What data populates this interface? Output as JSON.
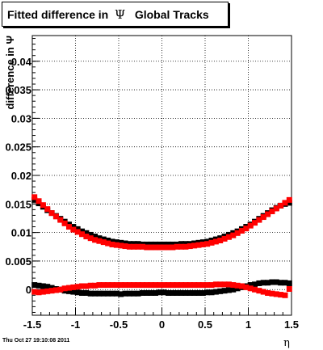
{
  "title": {
    "prefix": "Fitted difference in  ",
    "psi": "Ψ",
    "suffix": "   Global Tracks"
  },
  "footer_text": "Thu Oct 27 19:10:08 2011",
  "chart_data": {
    "type": "scatter",
    "title": "Fitted difference in Ψ Global Tracks",
    "xlabel": "η",
    "ylabel": "difference in Ψ",
    "xlim": [
      -1.5,
      1.5
    ],
    "ylim": [
      -0.0045,
      0.0445
    ],
    "grid": true,
    "x_ticks": [
      -1.5,
      -1,
      -0.5,
      0,
      0.5,
      1,
      1.5
    ],
    "x_tick_labels": [
      "-1.5",
      "-1",
      "-0.5",
      "0",
      "0.5",
      "1",
      "1.5"
    ],
    "y_ticks": [
      0,
      0.005,
      0.01,
      0.015,
      0.02,
      0.025,
      0.03,
      0.035,
      0.04
    ],
    "y_tick_labels": [
      "0",
      "0.005",
      "0.01",
      "0.015",
      "0.02",
      "0.025",
      "0.03",
      "0.035",
      "0.04"
    ],
    "series": [
      {
        "color": "#000000",
        "marker": "square",
        "x": [
          -1.475,
          -1.425,
          -1.375,
          -1.325,
          -1.275,
          -1.225,
          -1.175,
          -1.125,
          -1.075,
          -1.025,
          -0.975,
          -0.925,
          -0.875,
          -0.825,
          -0.775,
          -0.725,
          -0.675,
          -0.625,
          -0.575,
          -0.525,
          -0.475,
          -0.425,
          -0.375,
          -0.325,
          -0.275,
          -0.225,
          -0.175,
          -0.125,
          -0.075,
          -0.025,
          0.025,
          0.075,
          0.125,
          0.175,
          0.225,
          0.275,
          0.325,
          0.375,
          0.425,
          0.475,
          0.525,
          0.575,
          0.625,
          0.675,
          0.725,
          0.775,
          0.825,
          0.875,
          0.925,
          0.975,
          1.025,
          1.075,
          1.125,
          1.175,
          1.225,
          1.275,
          1.325,
          1.375,
          1.425,
          1.475
        ],
        "y": [
          0.0157,
          0.0151,
          0.0145,
          0.0139,
          0.0134,
          0.0129,
          0.0124,
          0.0119,
          0.0114,
          0.011,
          0.0106,
          0.0102,
          0.0099,
          0.0096,
          0.0093,
          0.009,
          0.0088,
          0.0086,
          0.0084,
          0.0083,
          0.0082,
          0.0081,
          0.008,
          0.008,
          0.008,
          0.0079,
          0.0079,
          0.0079,
          0.0079,
          0.0079,
          0.0079,
          0.0079,
          0.0079,
          0.0079,
          0.008,
          0.008,
          0.008,
          0.0081,
          0.0082,
          0.0083,
          0.0084,
          0.0086,
          0.0088,
          0.009,
          0.0093,
          0.0096,
          0.0099,
          0.0102,
          0.0106,
          0.011,
          0.0114,
          0.0119,
          0.0124,
          0.0129,
          0.0134,
          0.0139,
          0.0143,
          0.0147,
          0.015,
          0.0152
        ]
      },
      {
        "color": "#ff0000",
        "marker": "square",
        "x": [
          -1.475,
          -1.425,
          -1.375,
          -1.325,
          -1.275,
          -1.225,
          -1.175,
          -1.125,
          -1.075,
          -1.025,
          -0.975,
          -0.925,
          -0.875,
          -0.825,
          -0.775,
          -0.725,
          -0.675,
          -0.625,
          -0.575,
          -0.525,
          -0.475,
          -0.425,
          -0.375,
          -0.325,
          -0.275,
          -0.225,
          -0.175,
          -0.125,
          -0.075,
          -0.025,
          0.025,
          0.075,
          0.125,
          0.175,
          0.225,
          0.275,
          0.325,
          0.375,
          0.425,
          0.475,
          0.525,
          0.575,
          0.625,
          0.675,
          0.725,
          0.775,
          0.825,
          0.875,
          0.925,
          0.975,
          1.025,
          1.075,
          1.125,
          1.175,
          1.225,
          1.275,
          1.325,
          1.375,
          1.425,
          1.475
        ],
        "y": [
          0.0162,
          0.0155,
          0.0148,
          0.0141,
          0.0134,
          0.0128,
          0.0122,
          0.0116,
          0.011,
          0.0105,
          0.0101,
          0.0097,
          0.0093,
          0.009,
          0.0087,
          0.0085,
          0.0083,
          0.0081,
          0.0079,
          0.0078,
          0.0077,
          0.0076,
          0.0075,
          0.0075,
          0.0075,
          0.0075,
          0.0074,
          0.0074,
          0.0074,
          0.0074,
          0.0074,
          0.0074,
          0.0074,
          0.0075,
          0.0075,
          0.0075,
          0.0076,
          0.0077,
          0.0078,
          0.0079,
          0.008,
          0.0082,
          0.0084,
          0.0086,
          0.0089,
          0.0092,
          0.0095,
          0.0099,
          0.0103,
          0.0107,
          0.0112,
          0.0117,
          0.0122,
          0.0127,
          0.0132,
          0.0137,
          0.0142,
          0.0147,
          0.0152,
          0.0157
        ]
      },
      {
        "color": "#000000",
        "marker": "square",
        "x": [
          -1.475,
          -1.425,
          -1.375,
          -1.325,
          -1.275,
          -1.225,
          -1.175,
          -1.125,
          -1.075,
          -1.025,
          -0.975,
          -0.925,
          -0.875,
          -0.825,
          -0.775,
          -0.725,
          -0.675,
          -0.625,
          -0.575,
          -0.525,
          -0.475,
          -0.425,
          -0.375,
          -0.325,
          -0.275,
          -0.225,
          -0.175,
          -0.125,
          -0.075,
          -0.025,
          0.025,
          0.075,
          0.125,
          0.175,
          0.225,
          0.275,
          0.325,
          0.375,
          0.425,
          0.475,
          0.525,
          0.575,
          0.625,
          0.675,
          0.725,
          0.775,
          0.825,
          0.875,
          0.925,
          0.975,
          1.025,
          1.075,
          1.125,
          1.175,
          1.225,
          1.275,
          1.325,
          1.375,
          1.425,
          1.475
        ],
        "y": [
          0.0008,
          0.0007,
          0.0006,
          0.0005,
          0.0003,
          0.0001,
          0.0,
          -0.0002,
          -0.0003,
          -0.0004,
          -0.0005,
          -0.0006,
          -0.0006,
          -0.0007,
          -0.0007,
          -0.0007,
          -0.0007,
          -0.0007,
          -0.0007,
          -0.0007,
          -0.0008,
          -0.0007,
          -0.0007,
          -0.0007,
          -0.0007,
          -0.0006,
          -0.0006,
          -0.0006,
          -0.0006,
          -0.0005,
          -0.0005,
          -0.0006,
          -0.0006,
          -0.0006,
          -0.0006,
          -0.0006,
          -0.0006,
          -0.0006,
          -0.0006,
          -0.0006,
          -0.0005,
          -0.0005,
          -0.0004,
          -0.0003,
          -0.0002,
          -0.0001,
          0.0,
          0.0002,
          0.0004,
          0.0006,
          0.0008,
          0.0009,
          0.0011,
          0.0012,
          0.0012,
          0.0013,
          0.0013,
          0.0012,
          0.0012,
          0.0011
        ]
      },
      {
        "color": "#ff0000",
        "marker": "square",
        "x": [
          -1.475,
          -1.425,
          -1.375,
          -1.325,
          -1.275,
          -1.225,
          -1.175,
          -1.125,
          -1.075,
          -1.025,
          -0.975,
          -0.925,
          -0.875,
          -0.825,
          -0.775,
          -0.725,
          -0.675,
          -0.625,
          -0.575,
          -0.525,
          -0.475,
          -0.425,
          -0.375,
          -0.325,
          -0.275,
          -0.225,
          -0.175,
          -0.125,
          -0.075,
          -0.025,
          0.025,
          0.075,
          0.125,
          0.175,
          0.225,
          0.275,
          0.325,
          0.375,
          0.425,
          0.475,
          0.525,
          0.575,
          0.625,
          0.675,
          0.725,
          0.775,
          0.825,
          0.875,
          0.925,
          0.975,
          1.025,
          1.075,
          1.125,
          1.175,
          1.225,
          1.275,
          1.325,
          1.375,
          1.425,
          1.475
        ],
        "y": [
          -0.0004,
          -0.0005,
          -0.0004,
          -0.0003,
          -0.0002,
          -0.0001,
          0.0,
          0.0002,
          0.0003,
          0.0004,
          0.0005,
          0.0006,
          0.0006,
          0.0007,
          0.0007,
          0.0008,
          0.0008,
          0.0008,
          0.0008,
          0.0008,
          0.0008,
          0.0008,
          0.0008,
          0.0008,
          0.0008,
          0.0008,
          0.0008,
          0.0008,
          0.0008,
          0.0008,
          0.0008,
          0.0008,
          0.0008,
          0.0008,
          0.0008,
          0.0008,
          0.0008,
          0.0008,
          0.0008,
          0.0008,
          0.0008,
          0.0008,
          0.0009,
          0.0009,
          0.0009,
          0.0009,
          0.0008,
          0.0007,
          0.0006,
          0.0004,
          0.0002,
          0.0,
          -0.0002,
          -0.0004,
          -0.0006,
          -0.0007,
          -0.0008,
          -0.0009,
          -0.001,
          0.0001
        ]
      }
    ]
  }
}
